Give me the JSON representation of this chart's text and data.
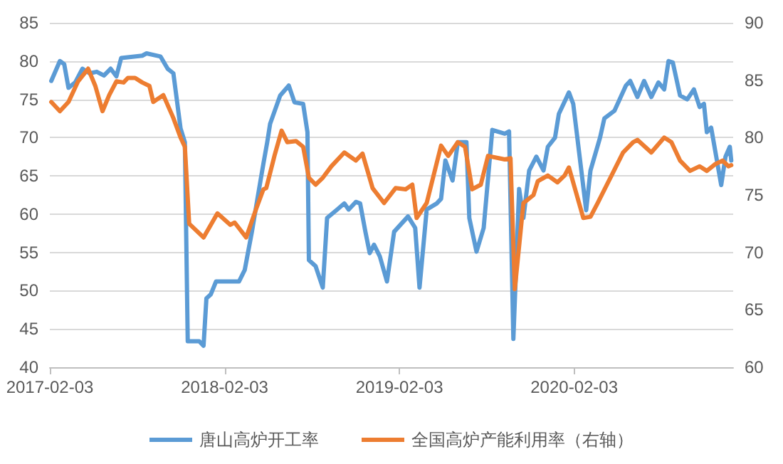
{
  "chart_data": {
    "type": "line",
    "legend": "bottom",
    "grid": "y",
    "marker": "none",
    "line_style": "solid",
    "xlim": [
      "2017-02-03",
      "2020-12-31"
    ],
    "xticks": [
      "2017-02-03",
      "2018-02-03",
      "2019-02-03",
      "2020-02-03"
    ],
    "ylim": [
      40,
      85
    ],
    "yticks": [
      40,
      45,
      50,
      55,
      60,
      65,
      70,
      75,
      80,
      85
    ],
    "y2lim": [
      60,
      90
    ],
    "y2ticks": [
      60,
      65,
      70,
      75,
      80,
      85,
      90
    ],
    "series": [
      {
        "name": "唐山高炉开工率",
        "color": "#5b9bd5",
        "x": [
          "2017-02-06",
          "2017-02-24",
          "2017-03-05",
          "2017-03-14",
          "2017-03-28",
          "2017-04-12",
          "2017-04-27",
          "2017-05-12",
          "2017-05-27",
          "2017-06-10",
          "2017-06-22",
          "2017-07-02",
          "2017-08-15",
          "2017-08-24",
          "2017-09-22",
          "2017-10-07",
          "2017-10-19",
          "2017-11-03",
          "2017-11-12",
          "2017-11-18",
          "2017-12-12",
          "2017-12-21",
          "2017-12-27",
          "2018-01-05",
          "2018-01-16",
          "2018-03-05",
          "2018-03-17",
          "2018-04-01",
          "2018-04-16",
          "2018-04-25",
          "2018-05-03",
          "2018-05-09",
          "2018-05-30",
          "2018-06-17",
          "2018-06-29",
          "2018-07-17",
          "2018-07-26",
          "2018-07-29",
          "2018-08-12",
          "2018-08-27",
          "2018-09-05",
          "2018-09-26",
          "2018-10-11",
          "2018-10-20",
          "2018-11-04",
          "2018-11-13",
          "2018-11-24",
          "2018-12-03",
          "2018-12-12",
          "2018-12-24",
          "2019-01-08",
          "2019-01-23",
          "2019-02-21",
          "2019-03-08",
          "2019-03-17",
          "2019-04-01",
          "2019-04-22",
          "2019-05-01",
          "2019-05-10",
          "2019-05-25",
          "2019-06-05",
          "2019-06-23",
          "2019-06-29",
          "2019-07-14",
          "2019-07-29",
          "2019-08-16",
          "2019-09-11",
          "2019-09-20",
          "2019-09-29",
          "2019-10-11",
          "2019-10-20",
          "2019-11-01",
          "2019-11-16",
          "2019-12-01",
          "2019-12-10",
          "2019-12-25",
          "2020-01-02",
          "2020-01-23",
          "2020-02-01",
          "2020-02-28",
          "2020-03-08",
          "2020-03-28",
          "2020-04-06",
          "2020-04-27",
          "2020-05-21",
          "2020-05-30",
          "2020-06-14",
          "2020-06-28",
          "2020-07-13",
          "2020-07-28",
          "2020-08-09",
          "2020-08-18",
          "2020-08-27",
          "2020-09-11",
          "2020-09-26",
          "2020-10-10",
          "2020-10-22",
          "2020-10-31",
          "2020-11-06",
          "2020-11-15",
          "2020-12-06",
          "2020-12-15",
          "2020-12-24",
          "2020-12-27"
        ],
        "values": [
          77.4,
          80,
          79.6,
          76.5,
          77.2,
          79,
          78.4,
          78.6,
          78.1,
          79,
          78,
          80.4,
          80.7,
          81,
          80.6,
          79,
          78.4,
          71.2,
          69.4,
          43.4,
          43.4,
          42.8,
          49,
          49.5,
          51.2,
          51.2,
          52.7,
          57.7,
          63.3,
          66.6,
          69.4,
          71.8,
          75.5,
          76.8,
          74.6,
          74.4,
          70.7,
          54,
          53.2,
          50.4,
          59.5,
          60.6,
          61.4,
          60.6,
          61.6,
          61.4,
          57.7,
          54.9,
          56,
          54.5,
          51.2,
          57.7,
          59.7,
          58.2,
          50.4,
          60.6,
          61.4,
          62,
          67,
          64.4,
          69.4,
          69.4,
          59.5,
          55.1,
          58.2,
          71,
          70.5,
          70.8,
          43.7,
          63.3,
          59.5,
          65.7,
          67.5,
          65.7,
          68.8,
          70,
          73.1,
          75.9,
          74.4,
          60.5,
          65.7,
          70,
          72.5,
          73.5,
          76.8,
          77.4,
          75.3,
          77.4,
          75.3,
          77.2,
          76.3,
          80,
          79.8,
          75.5,
          75,
          76.3,
          74,
          74.4,
          70.7,
          71.3,
          63.8,
          67.5,
          68.8,
          67
        ]
      },
      {
        "name": "全国高炉产能利用率（右轴）",
        "color": "#ed7d31",
        "axis": "y2",
        "x": [
          "2017-02-06",
          "2017-02-24",
          "2017-03-14",
          "2017-04-03",
          "2017-04-24",
          "2017-05-09",
          "2017-05-24",
          "2017-06-07",
          "2017-06-22",
          "2017-07-07",
          "2017-07-16",
          "2017-07-31",
          "2017-08-15",
          "2017-08-30",
          "2017-09-07",
          "2017-09-28",
          "2017-10-19",
          "2017-11-03",
          "2017-11-12",
          "2017-11-21",
          "2017-12-21",
          "2018-01-19",
          "2018-02-15",
          "2018-02-24",
          "2018-03-20",
          "2018-04-10",
          "2018-04-25",
          "2018-05-01",
          "2018-05-18",
          "2018-06-02",
          "2018-06-14",
          "2018-07-02",
          "2018-07-17",
          "2018-07-29",
          "2018-08-12",
          "2018-08-27",
          "2018-09-14",
          "2018-10-11",
          "2018-11-04",
          "2018-11-18",
          "2018-12-09",
          "2019-01-02",
          "2019-01-26",
          "2019-02-16",
          "2019-03-02",
          "2019-03-11",
          "2019-04-01",
          "2019-05-01",
          "2019-05-16",
          "2019-06-05",
          "2019-06-20",
          "2019-07-05",
          "2019-07-23",
          "2019-08-07",
          "2019-09-11",
          "2019-09-23",
          "2019-10-02",
          "2019-10-20",
          "2019-11-10",
          "2019-11-19",
          "2019-12-10",
          "2019-12-30",
          "2020-01-14",
          "2020-01-23",
          "2020-02-22",
          "2020-03-08",
          "2020-03-23",
          "2020-04-21",
          "2020-05-15",
          "2020-06-05",
          "2020-06-14",
          "2020-07-13",
          "2020-08-09",
          "2020-08-24",
          "2020-09-11",
          "2020-10-02",
          "2020-10-22",
          "2020-11-06",
          "2020-11-24",
          "2020-12-09",
          "2020-12-21",
          "2020-12-27"
        ],
        "values": [
          83.1,
          82.3,
          83.1,
          84.9,
          86,
          84.5,
          82.3,
          83.7,
          84.9,
          84.8,
          85.2,
          85.2,
          84.8,
          84.5,
          83.1,
          83.7,
          81.7,
          80,
          79.2,
          72.5,
          71.3,
          73.4,
          72.4,
          72.6,
          71.3,
          73.8,
          75.5,
          75.6,
          78.4,
          80.6,
          79.6,
          79.7,
          79.2,
          76.5,
          75.9,
          76.5,
          77.5,
          78.7,
          78,
          78.6,
          75.6,
          74.3,
          75.6,
          75.5,
          75.9,
          73,
          74.3,
          79.3,
          78.4,
          79.6,
          79.2,
          75.5,
          75.9,
          78.4,
          78.1,
          78.2,
          66.8,
          74.3,
          75,
          76.2,
          76.7,
          76.1,
          76.7,
          77.4,
          73,
          73.1,
          74.3,
          76.7,
          78.7,
          79.6,
          79.8,
          78.7,
          80,
          79.6,
          78,
          77.1,
          77.5,
          77.1,
          77.7,
          78,
          77.5,
          77.6
        ]
      }
    ]
  }
}
